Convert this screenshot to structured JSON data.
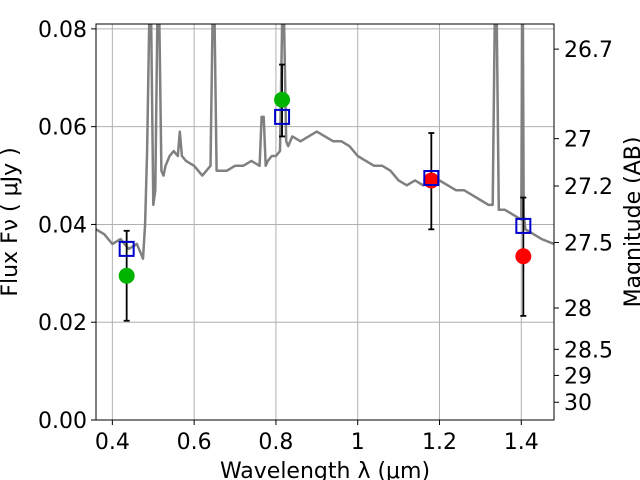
{
  "chart_data": {
    "type": "scatter",
    "xlabel": "Wavelength  λ (μm)",
    "ylabel": "Flux  Fν  ( μJy )",
    "y2label": "Magnitude (AB)",
    "xlim": [
      0.36,
      1.48
    ],
    "ylim": [
      0.0,
      0.081
    ],
    "grid": true,
    "x_ticks": [
      {
        "value": 0.4,
        "label": "0.4"
      },
      {
        "value": 0.6,
        "label": "0.6"
      },
      {
        "value": 0.8,
        "label": "0.8"
      },
      {
        "value": 1.0,
        "label": "1"
      },
      {
        "value": 1.2,
        "label": "1.2"
      },
      {
        "value": 1.4,
        "label": "1.4"
      }
    ],
    "y_ticks": [
      {
        "value": 0.0,
        "label": "0.00"
      },
      {
        "value": 0.02,
        "label": "0.02"
      },
      {
        "value": 0.04,
        "label": "0.04"
      },
      {
        "value": 0.06,
        "label": "0.06"
      },
      {
        "value": 0.08,
        "label": "0.08"
      }
    ],
    "mag_ticks": [
      {
        "value": 26.7,
        "label": "26.7"
      },
      {
        "value": 27.0,
        "label": "27"
      },
      {
        "value": 27.2,
        "label": "27.2"
      },
      {
        "value": 27.5,
        "label": "27.5"
      },
      {
        "value": 28.0,
        "label": "28"
      },
      {
        "value": 28.5,
        "label": "28.5"
      },
      {
        "value": 29.0,
        "label": "29"
      },
      {
        "value": 30.0,
        "label": "30"
      }
    ],
    "series": [
      {
        "name": "model spectrum",
        "kind": "line",
        "color": "#808080",
        "x": [
          0.36,
          0.38,
          0.4,
          0.42,
          0.44,
          0.46,
          0.47,
          0.475,
          0.48,
          0.485,
          0.49,
          0.495,
          0.5,
          0.505,
          0.51,
          0.515,
          0.52,
          0.525,
          0.53,
          0.54,
          0.55,
          0.56,
          0.565,
          0.57,
          0.58,
          0.6,
          0.62,
          0.64,
          0.645,
          0.65,
          0.655,
          0.66,
          0.68,
          0.7,
          0.72,
          0.74,
          0.76,
          0.765,
          0.77,
          0.775,
          0.78,
          0.79,
          0.8,
          0.81,
          0.815,
          0.82,
          0.825,
          0.83,
          0.84,
          0.86,
          0.88,
          0.9,
          0.92,
          0.94,
          0.96,
          0.98,
          1.0,
          1.02,
          1.04,
          1.06,
          1.08,
          1.1,
          1.12,
          1.14,
          1.16,
          1.18,
          1.2,
          1.22,
          1.24,
          1.26,
          1.28,
          1.3,
          1.32,
          1.33,
          1.335,
          1.34,
          1.345,
          1.35,
          1.36,
          1.38,
          1.4,
          1.402,
          1.404,
          1.406,
          1.41,
          1.43,
          1.45,
          1.48
        ],
        "y": [
          0.039,
          0.038,
          0.036,
          0.037,
          0.035,
          0.036,
          0.034,
          0.033,
          0.04,
          0.055,
          0.081,
          0.081,
          0.044,
          0.047,
          0.081,
          0.081,
          0.051,
          0.05,
          0.052,
          0.054,
          0.055,
          0.054,
          0.059,
          0.054,
          0.053,
          0.052,
          0.05,
          0.052,
          0.081,
          0.081,
          0.051,
          0.051,
          0.051,
          0.052,
          0.052,
          0.053,
          0.052,
          0.062,
          0.062,
          0.052,
          0.053,
          0.054,
          0.054,
          0.055,
          0.081,
          0.081,
          0.057,
          0.056,
          0.058,
          0.057,
          0.058,
          0.059,
          0.058,
          0.057,
          0.057,
          0.056,
          0.054,
          0.053,
          0.052,
          0.052,
          0.051,
          0.049,
          0.048,
          0.049,
          0.048,
          0.05,
          0.049,
          0.048,
          0.047,
          0.047,
          0.046,
          0.045,
          0.044,
          0.044,
          0.081,
          0.081,
          0.043,
          0.043,
          0.043,
          0.042,
          0.041,
          0.081,
          0.081,
          0.042,
          0.039,
          0.038,
          0.037,
          0.036
        ]
      },
      {
        "name": "model photometry",
        "kind": "open-square",
        "color": "#0000cc",
        "x": [
          0.435,
          0.815,
          1.18,
          1.405
        ],
        "y": [
          0.035,
          0.062,
          0.0495,
          0.0397
        ]
      },
      {
        "name": "observed (detections)",
        "kind": "circle",
        "color": "#00b300",
        "x": [
          0.435,
          0.815
        ],
        "y": [
          0.0295,
          0.0655
        ]
      },
      {
        "name": "observed (errorbar points)",
        "kind": "circle",
        "color": "#ff0000",
        "x": [
          1.18,
          1.405
        ],
        "y": [
          0.049,
          0.0335
        ]
      },
      {
        "name": "error bars",
        "kind": "errorbar",
        "color": "#000000",
        "x": [
          0.435,
          0.815,
          1.18,
          1.405
        ],
        "low": [
          0.0203,
          0.058,
          0.039,
          0.0213
        ],
        "high": [
          0.0387,
          0.0727,
          0.0587,
          0.0455
        ]
      }
    ]
  }
}
